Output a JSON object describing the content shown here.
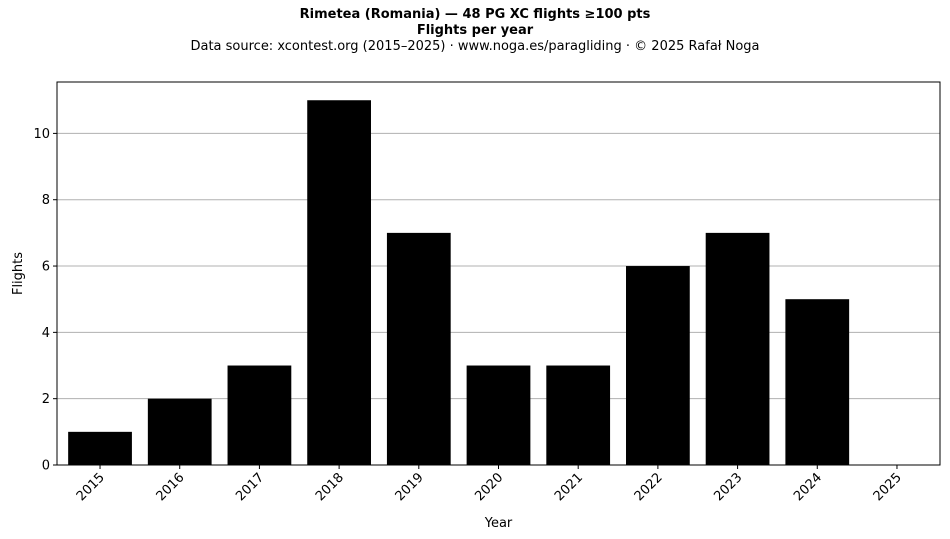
{
  "header": {
    "title": "Rimetea (Romania)  —  48 PG XC flights ≥100 pts",
    "subtitle": "Flights per year",
    "source": "Data source: xcontest.org (2015–2025)  ·  www.noga.es/paragliding  ·  © 2025 Rafał Noga"
  },
  "chart_data": {
    "type": "bar",
    "title": "Rimetea (Romania)  —  48 PG XC flights ≥100 pts",
    "subtitle": "Flights per year",
    "xlabel": "Year",
    "ylabel": "Flights",
    "categories": [
      "2015",
      "2016",
      "2017",
      "2018",
      "2019",
      "2020",
      "2021",
      "2022",
      "2023",
      "2024",
      "2025"
    ],
    "values": [
      1,
      2,
      3,
      11,
      7,
      3,
      3,
      6,
      7,
      5,
      0
    ],
    "ylim": [
      0,
      11.55
    ],
    "yticks": [
      0,
      2,
      4,
      6,
      8,
      10
    ],
    "grid": "horizontal",
    "bar_color": "#000000",
    "grid_color": "#b0b0b0"
  }
}
